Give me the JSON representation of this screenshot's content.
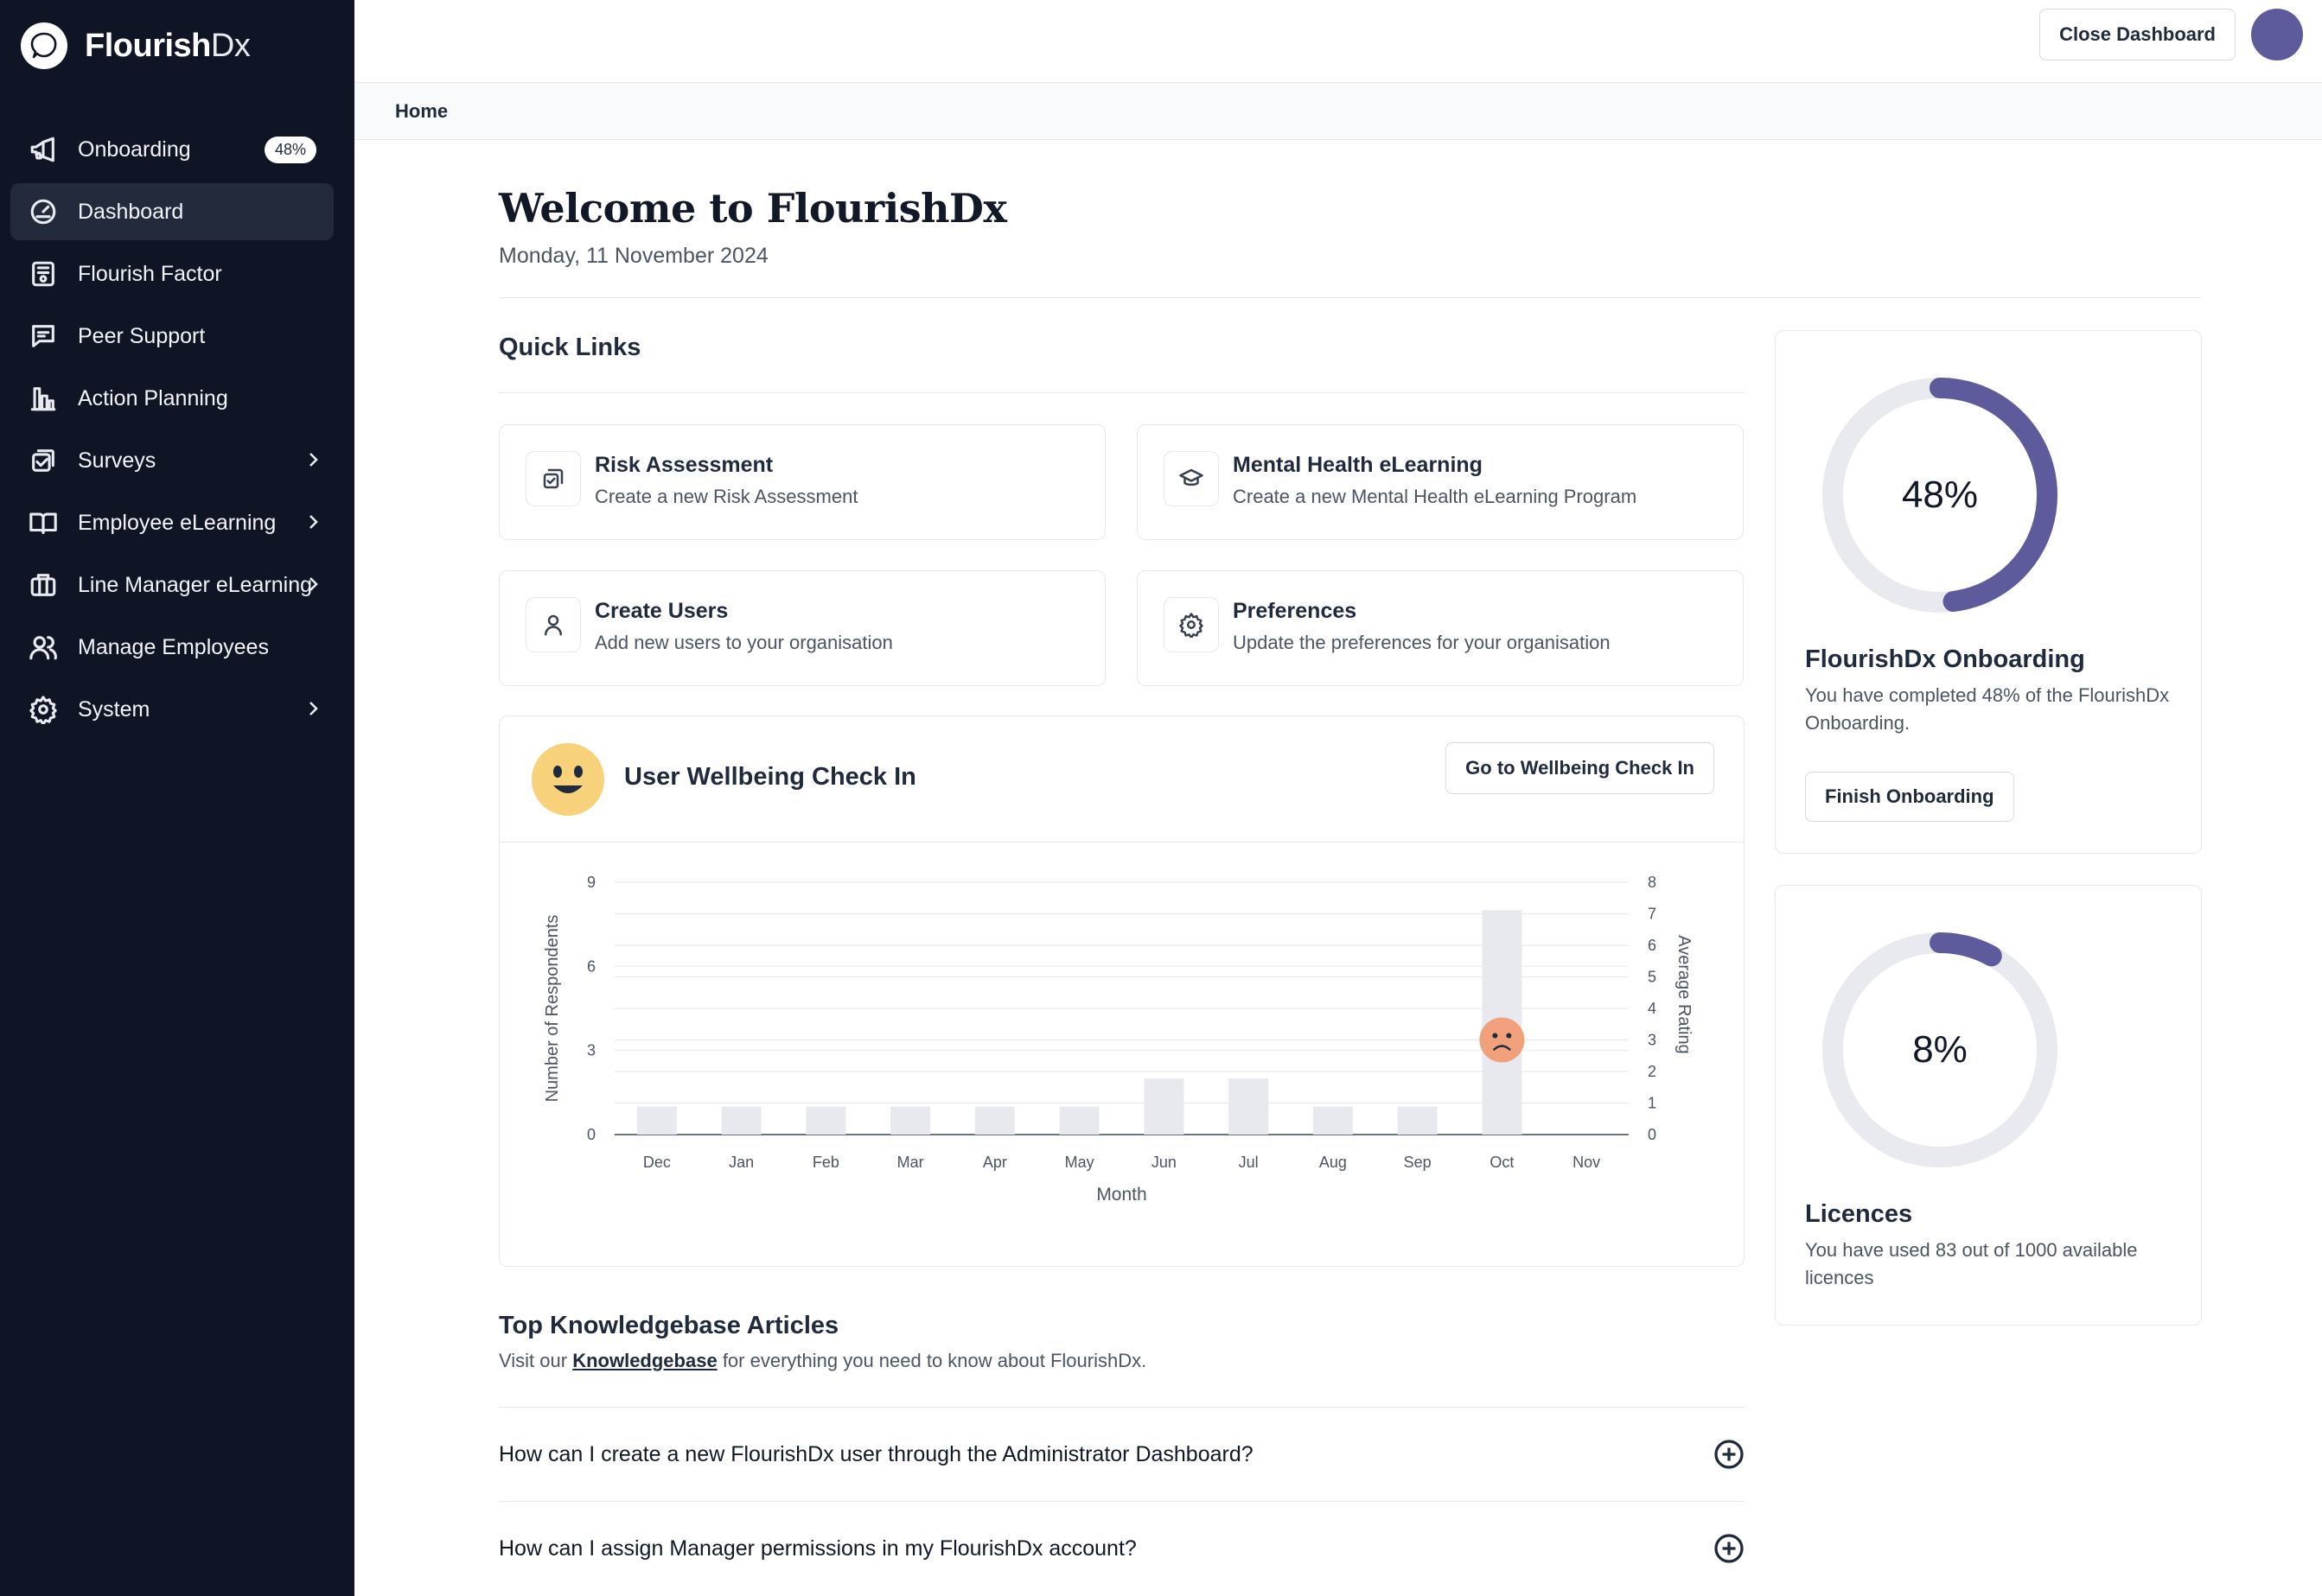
{
  "app": {
    "logo_bold": "Flourish",
    "logo_thin": "Dx"
  },
  "sidebar": {
    "items": [
      {
        "label": "Onboarding",
        "icon": "megaphone-icon",
        "badge": "48%"
      },
      {
        "label": "Dashboard",
        "icon": "gauge-icon"
      },
      {
        "label": "Flourish Factor",
        "icon": "certificate-icon"
      },
      {
        "label": "Peer Support",
        "icon": "chat-icon"
      },
      {
        "label": "Action Planning",
        "icon": "bar-chart-icon"
      },
      {
        "label": "Surveys",
        "icon": "checklist-icon"
      },
      {
        "label": "Employee eLearning",
        "icon": "book-icon"
      },
      {
        "label": "Line Manager eLearning",
        "icon": "briefcase-icon"
      },
      {
        "label": "Manage Employees",
        "icon": "users-icon"
      },
      {
        "label": "System",
        "icon": "gear-icon"
      }
    ],
    "active_index": 1
  },
  "header": {
    "close_label": "Close Dashboard",
    "avatar_color": "#5e5b9c"
  },
  "breadcrumb": "Home",
  "main": {
    "title": "Welcome to FlourishDx",
    "date": "Monday, 11 November 2024",
    "quick_links_title": "Quick Links",
    "quick_links": [
      {
        "title": "Risk Assessment",
        "desc": "Create a new Risk Assessment",
        "icon": "copy-check-icon"
      },
      {
        "title": "Mental Health eLearning",
        "desc": "Create a new Mental Health eLearning Program",
        "icon": "graduation-cap-icon"
      },
      {
        "title": "Create Users",
        "desc": "Add new users to your organisation",
        "icon": "user-icon"
      },
      {
        "title": "Preferences",
        "desc": "Update the preferences for your organisation",
        "icon": "gear-icon"
      }
    ]
  },
  "wellbeing": {
    "title": "User Wellbeing Check In",
    "button": "Go to Wellbeing Check In"
  },
  "chart_data": {
    "type": "bar",
    "categories": [
      "Dec",
      "Jan",
      "Feb",
      "Mar",
      "Apr",
      "May",
      "Jun",
      "Jul",
      "Aug",
      "Sep",
      "Oct",
      "Nov"
    ],
    "series": [
      {
        "values": [
          1,
          1,
          1,
          1,
          1,
          1,
          2,
          2,
          1,
          1,
          8,
          0
        ]
      }
    ],
    "rating_points": [
      {
        "category": "Oct",
        "value": 3
      }
    ],
    "xlabel": "Month",
    "ylabel": "Number of Respondents",
    "y2label": "Average Rating",
    "ylim": [
      0,
      9
    ],
    "yticks": [
      0,
      3,
      6,
      9
    ],
    "y2lim": [
      0,
      8
    ],
    "y2ticks": [
      0,
      1,
      2,
      3,
      4,
      5,
      6,
      7,
      8
    ],
    "grid": true,
    "bar_color": "#e8e9ee",
    "rating_color": "#f0a07a"
  },
  "knowledgebase": {
    "title": "Top Knowledgebase Articles",
    "sub_prefix": "Visit our",
    "sub_link": "Knowledgebase",
    "sub_suffix": "for everything you need to know about FlourishDx.",
    "items": [
      "How can I create a new FlourishDx user through the Administrator Dashboard?",
      "How can I assign Manager permissions in my FlourishDx account?"
    ]
  },
  "onboarding_card": {
    "percent": 48,
    "percent_label": "48%",
    "title": "FlourishDx Onboarding",
    "desc": "You have completed 48% of the FlourishDx Onboarding.",
    "button": "Finish Onboarding",
    "color": "#5e5b9c"
  },
  "licences_card": {
    "percent": 8,
    "percent_label": "8%",
    "title": "Licences",
    "desc": "You have used 83 out of 1000 available licences",
    "color": "#5e5b9c"
  }
}
